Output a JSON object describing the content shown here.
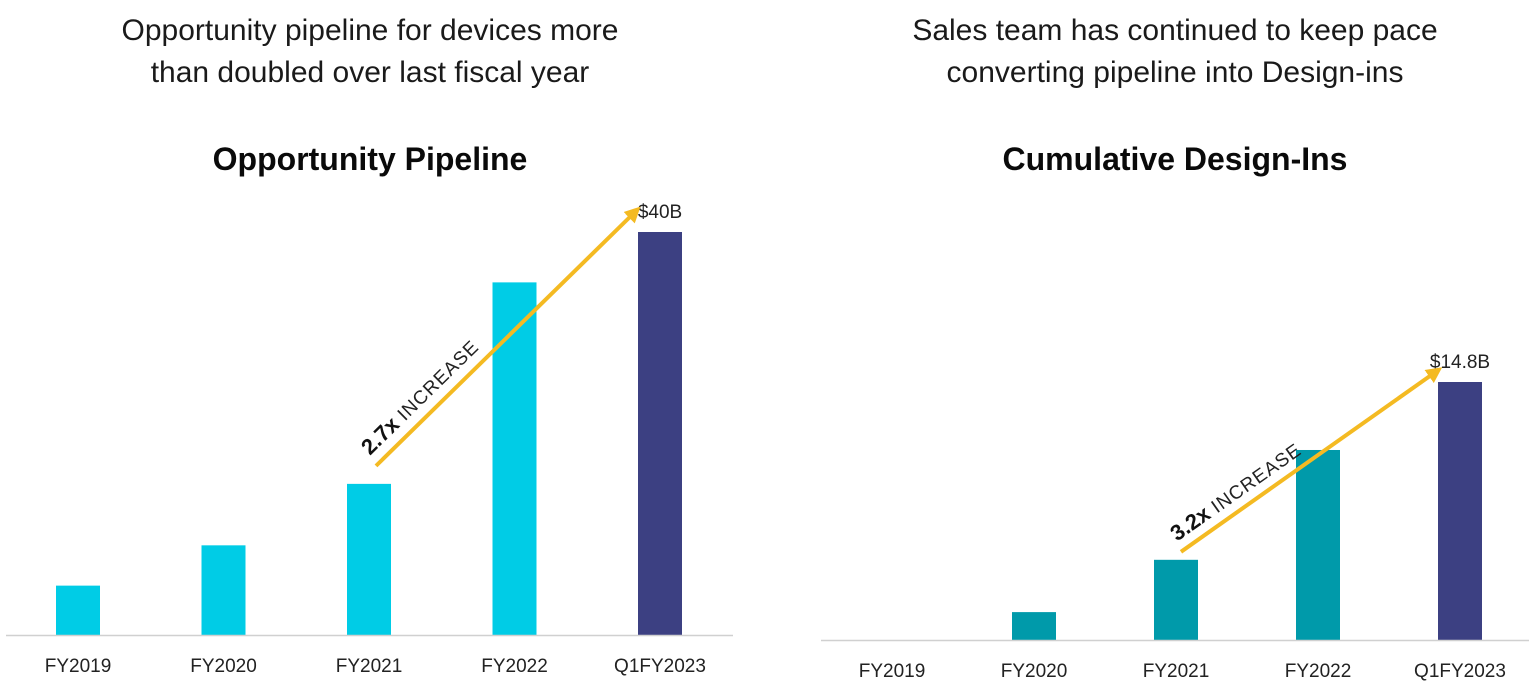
{
  "colors": {
    "bar_light_left": "#00CCE6",
    "bar_light_right": "#009AAA",
    "bar_dark": "#3C4082",
    "arrow": "#F4BA22",
    "axis": "#D0D0D0"
  },
  "left": {
    "headline": [
      "Opportunity pipeline for devices more",
      "than doubled over last fiscal year"
    ],
    "annotation": {
      "multiplier": "2.7x",
      "text": "INCREASE"
    }
  },
  "right": {
    "headline": [
      "Sales team has continued to keep pace",
      "converting pipeline into Design-ins"
    ],
    "annotation": {
      "multiplier": "3.2x",
      "text": "INCREASE"
    }
  },
  "chart_data": [
    {
      "type": "bar",
      "title": "Opportunity Pipeline",
      "categories": [
        "FY2019",
        "FY2020",
        "FY2021",
        "FY2022",
        "Q1FY2023"
      ],
      "values": [
        4.9,
        8.9,
        15.0,
        35.0,
        40.0
      ],
      "value_labels": [
        "",
        "",
        "",
        "",
        "$40B"
      ],
      "unit": "$B",
      "ylim": [
        0,
        40
      ],
      "grid": false,
      "highlight_last": true
    },
    {
      "type": "bar",
      "title": "Cumulative Design-Ins",
      "categories": [
        "FY2019",
        "FY2020",
        "FY2021",
        "FY2022",
        "Q1FY2023"
      ],
      "values": [
        0,
        1.6,
        4.6,
        10.9,
        14.8
      ],
      "value_labels": [
        "",
        "",
        "",
        "",
        "$14.8B"
      ],
      "unit": "$B",
      "ylim": [
        0,
        14.8
      ],
      "grid": false,
      "highlight_last": true
    }
  ]
}
